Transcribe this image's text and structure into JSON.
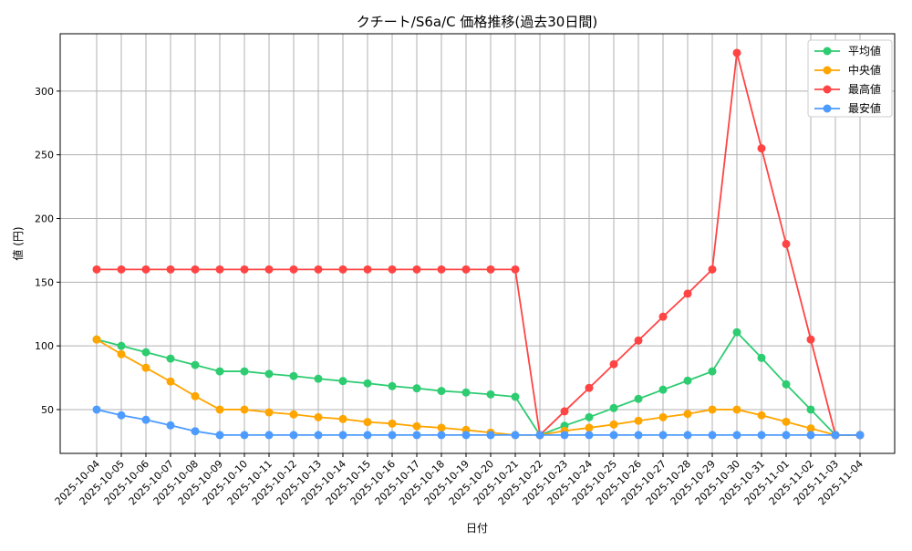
{
  "chart_data": {
    "type": "line",
    "title": "クチート/S6a/C 価格推移(過去30日間)",
    "xlabel": "日付",
    "ylabel": "値 (円)",
    "ylim": [
      15.6,
      345
    ],
    "yticks": [
      50,
      100,
      150,
      200,
      250,
      300
    ],
    "grid": true,
    "legend_position": "top-right",
    "x": [
      "2025-10-04",
      "2025-10-05",
      "2025-10-06",
      "2025-10-07",
      "2025-10-08",
      "2025-10-09",
      "2025-10-10",
      "2025-10-11",
      "2025-10-12",
      "2025-10-13",
      "2025-10-14",
      "2025-10-15",
      "2025-10-16",
      "2025-10-17",
      "2025-10-18",
      "2025-10-19",
      "2025-10-20",
      "2025-10-21",
      "2025-10-22",
      "2025-10-23",
      "2025-10-24",
      "2025-10-25",
      "2025-10-26",
      "2025-10-27",
      "2025-10-28",
      "2025-10-29",
      "2025-10-30",
      "2025-10-31",
      "2025-11-01",
      "2025-11-02",
      "2025-11-03",
      "2025-11-04"
    ],
    "series": [
      {
        "name": "平均値",
        "color": "#2ecc71",
        "values": [
          105,
          100,
          95,
          90,
          85,
          80,
          80,
          78,
          76.3,
          74.2,
          72.4,
          70.6,
          68.4,
          66.7,
          64.6,
          63.4,
          61.9,
          60,
          30,
          37.3,
          44,
          51.2,
          58.4,
          65.6,
          72.7,
          80,
          110.7,
          90.6,
          69.8,
          50,
          30,
          30
        ]
      },
      {
        "name": "中央値",
        "color": "#ffa500",
        "values": [
          105,
          93.5,
          82.8,
          72,
          60.5,
          50,
          50,
          47.8,
          46.2,
          44,
          42.6,
          40.2,
          39,
          36.9,
          35.7,
          34,
          31.9,
          30,
          30,
          33.3,
          35.7,
          38.3,
          41.2,
          44,
          46.6,
          50,
          50,
          45.5,
          40.4,
          35.2,
          30,
          30
        ]
      },
      {
        "name": "最高値",
        "color": "#ff4444",
        "values": [
          160,
          160,
          160,
          160,
          160,
          160,
          160,
          160,
          160,
          160,
          160,
          160,
          160,
          160,
          160,
          160,
          160,
          160,
          30,
          48.6,
          67,
          85.6,
          104.2,
          122.9,
          141,
          160,
          330,
          255,
          180,
          105,
          30,
          30
        ]
      },
      {
        "name": "最安値",
        "color": "#4d9bff",
        "values": [
          50,
          45.5,
          42,
          37.6,
          33,
          30,
          30,
          30,
          30,
          30,
          30,
          30,
          30,
          30,
          30,
          30,
          30,
          30,
          30,
          30,
          30,
          30,
          30,
          30,
          30,
          30,
          30,
          30,
          30,
          30,
          30,
          30
        ]
      }
    ]
  }
}
